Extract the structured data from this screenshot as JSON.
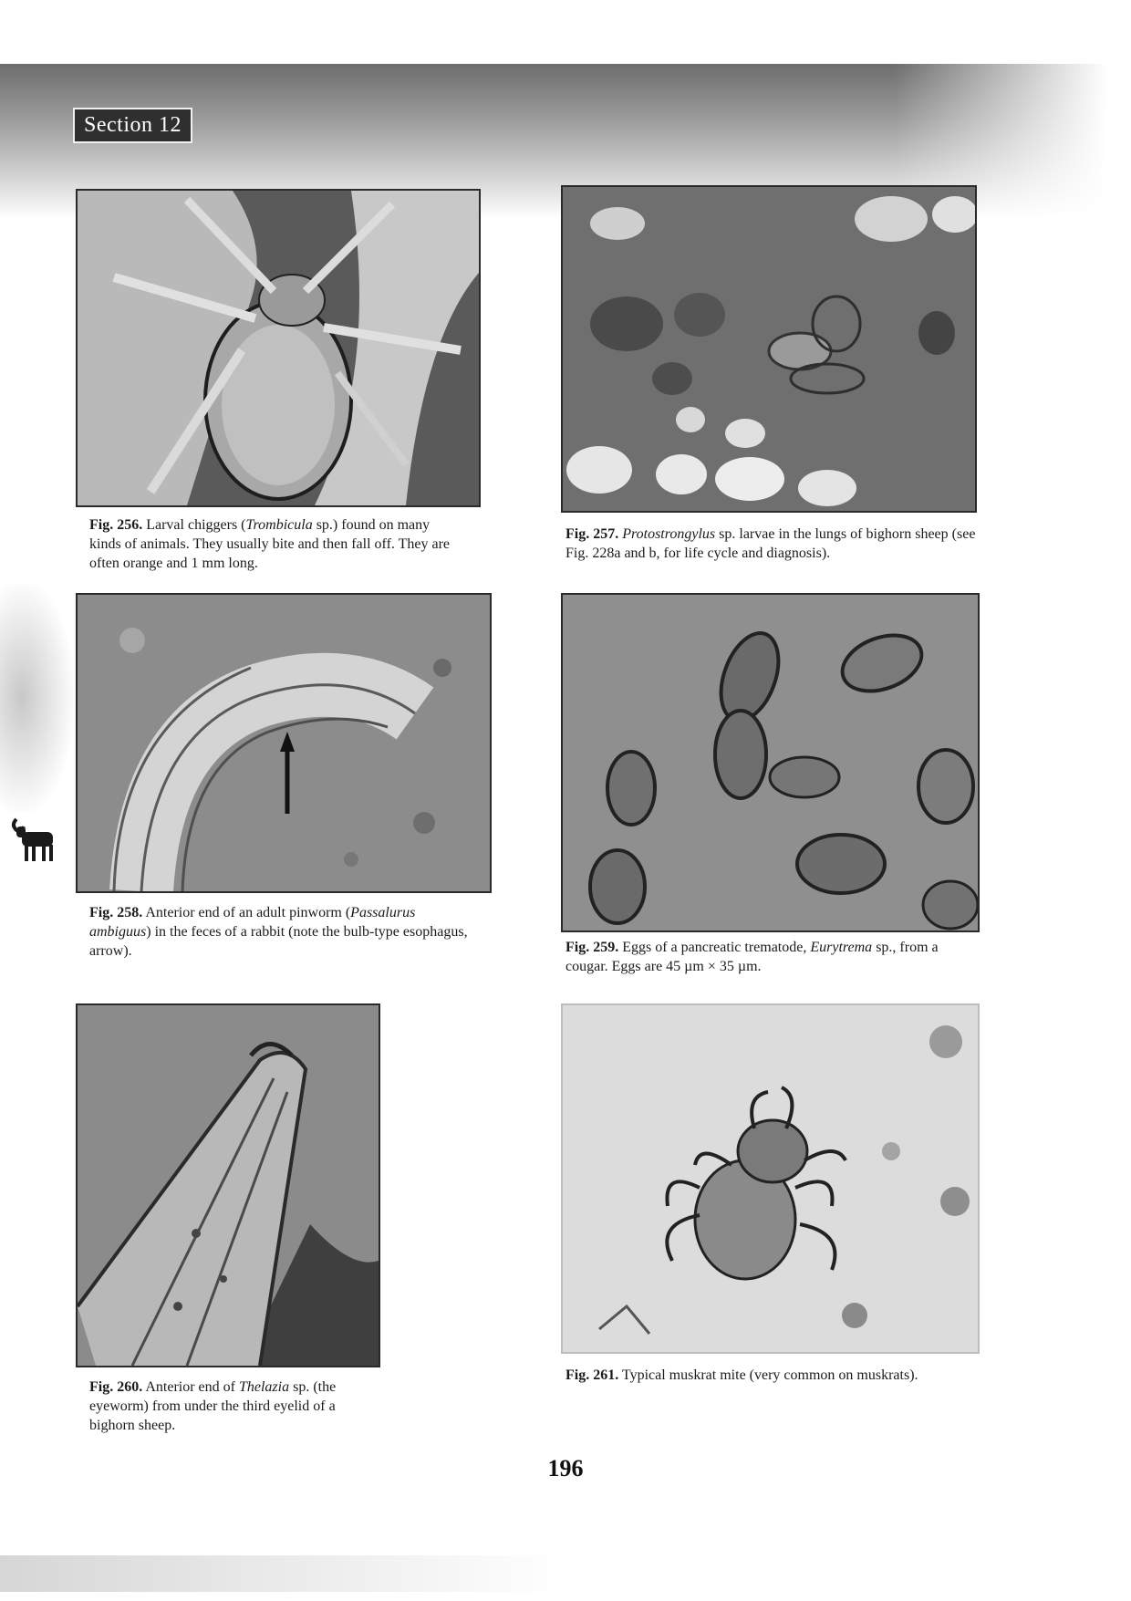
{
  "section_label": "Section 12",
  "page_number": "196",
  "figures": [
    {
      "id": "fig-256",
      "label": "Fig. 256.",
      "pre": " Larval chiggers (",
      "italic": "Trombicula",
      "post": " sp.) found on many kinds of animals. They usually bite and then fall off. They are often orange and 1 mm long."
    },
    {
      "id": "fig-257",
      "label": "Fig. 257.",
      "pre": " ",
      "italic": "Protostrongylus",
      "post": " sp. larvae in the lungs of bighorn sheep (see Fig. 228a and b, for life cycle and diagnosis)."
    },
    {
      "id": "fig-258",
      "label": "Fig. 258.",
      "pre": " Anterior end of an adult pinworm (",
      "italic": "Passalurus ambiguus",
      "post": ") in the feces of a rabbit (note the bulb-type esophagus, arrow)."
    },
    {
      "id": "fig-259",
      "label": "Fig. 259.",
      "pre": " Eggs of a pancreatic trematode, ",
      "italic": "Eurytrema",
      "post": " sp., from a cougar. Eggs are 45 µm × 35 µm."
    },
    {
      "id": "fig-260",
      "label": "Fig. 260.",
      "pre": " Anterior end of ",
      "italic": "Thelazia",
      "post": " sp. (the eyeworm) from under the third eyelid of a bighorn sheep."
    },
    {
      "id": "fig-261",
      "label": "Fig. 261.",
      "pre": " Typical muskrat mite (very common on muskrats).",
      "italic": "",
      "post": ""
    }
  ],
  "colors": {
    "ink": "#1a1a1a",
    "photo_dark": "#3a3a3a",
    "photo_mid": "#8a8a8a",
    "photo_light": "#d8d8d8"
  }
}
